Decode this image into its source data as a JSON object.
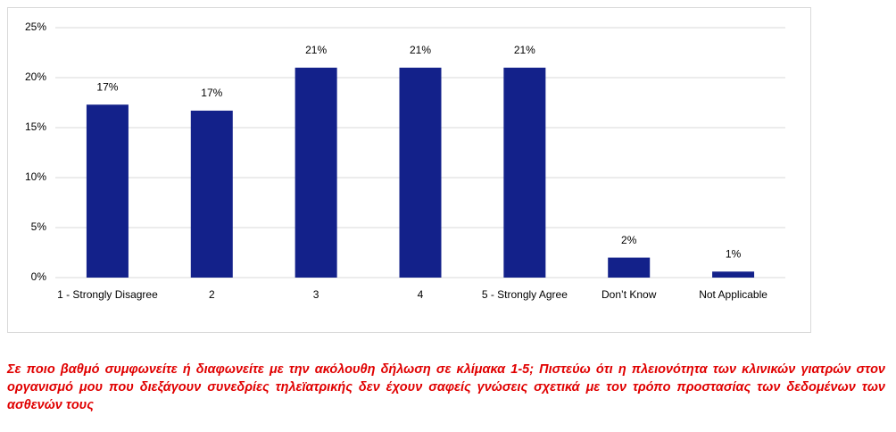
{
  "chart_data": {
    "type": "bar",
    "categories": [
      "1 - Strongly Disagree",
      "2",
      "3",
      "4",
      "5 - Strongly Agree",
      "Don’t Know",
      "Not Applicable"
    ],
    "values": [
      17.3,
      16.7,
      21,
      21,
      21,
      2,
      0.6
    ],
    "value_labels": [
      "17%",
      "17%",
      "21%",
      "21%",
      "21%",
      "2%",
      "1%"
    ],
    "color": "#13218a",
    "ylim": [
      0,
      25
    ],
    "yticks": [
      {
        "value": 0,
        "label": "0%"
      },
      {
        "value": 5,
        "label": "5%"
      },
      {
        "value": 10,
        "label": "10%"
      },
      {
        "value": 15,
        "label": "15%"
      },
      {
        "value": 20,
        "label": "20%"
      },
      {
        "value": 25,
        "label": "25%"
      }
    ],
    "grid": true,
    "caption": "Σε ποιο βαθμό συμφωνείτε ή διαφωνείτε με την ακόλουθη δήλωση σε κλίμακα 1-5; Πιστεύω ότι η πλειονότητα των κλινικών γιατρών στον οργανισμό μου που διεξάγουν συνεδρίες τηλεϊατρικής δεν έχουν σαφείς γνώσεις σχετικά με τον τρόπο προστασίας των δεδομένων των ασθενών τους"
  }
}
